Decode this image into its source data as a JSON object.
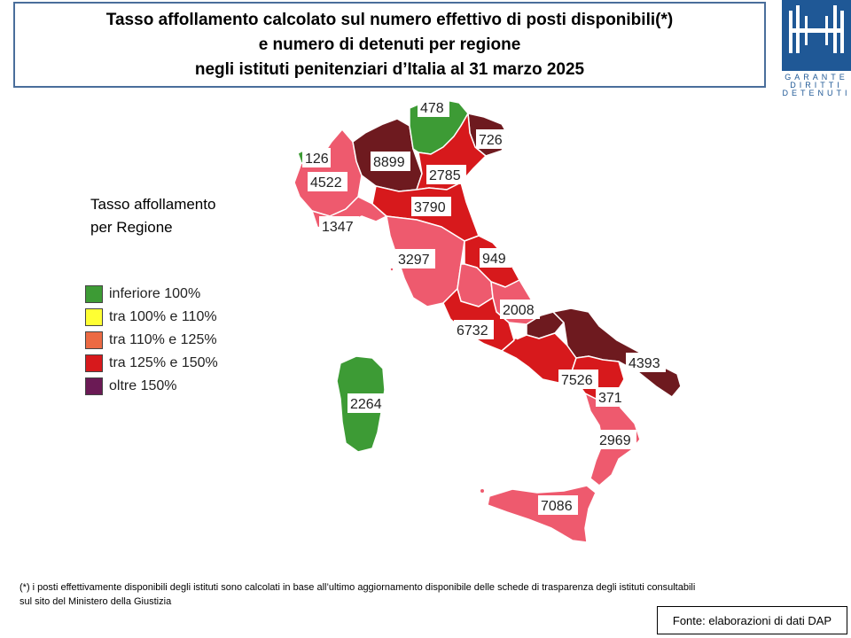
{
  "title": {
    "line1": "Tasso affollamento calcolato sul numero effettivo di posti disponibili(*)",
    "line2": "e numero di detenuti per regione",
    "line3": "negli istituti penitenziari d’Italia al 31 marzo 2025"
  },
  "logo": {
    "line1": "GARANTE",
    "line2": "DIRITTI",
    "line3": "DETENUTI",
    "color": "#1f5896"
  },
  "legend": {
    "title": "Tasso affollamento per Regione",
    "items": [
      {
        "label": "inferiore 100%",
        "color": "#3d9b35"
      },
      {
        "label": "tra 100% e 110%",
        "color": "#ffff33"
      },
      {
        "label": "tra 110% e 125%",
        "color": "#ec6a43"
      },
      {
        "label": "tra 125% e 150%",
        "color": "#d7191c"
      },
      {
        "label": "oltre 150%",
        "color": "#6b1a55"
      }
    ]
  },
  "regions": [
    {
      "name": "Valle d'Aosta",
      "value": "126",
      "class": "inferiore 100%"
    },
    {
      "name": "Piemonte",
      "value": "4522",
      "class": "tra 110% e 125%"
    },
    {
      "name": "Liguria",
      "value": "1347",
      "class": "tra 110% e 125%"
    },
    {
      "name": "Lombardia",
      "value": "8899",
      "class": "oltre 150%"
    },
    {
      "name": "Trentino-Alto Adige",
      "value": "478",
      "class": "inferiore 100%"
    },
    {
      "name": "Veneto",
      "value": "2785",
      "class": "oltre 150%"
    },
    {
      "name": "Friuli-Venezia Giulia",
      "value": "726",
      "class": "tra 125% e 150%"
    },
    {
      "name": "Emilia-Romagna",
      "value": "3790",
      "class": "tra 125% e 150%"
    },
    {
      "name": "Toscana",
      "value": "3297",
      "class": "tra 110% e 125%"
    },
    {
      "name": "Marche",
      "value": "949",
      "class": "tra 125% e 150%"
    },
    {
      "name": "Umbria",
      "value": "",
      "class": "tra 110% e 125%"
    },
    {
      "name": "Abruzzo",
      "value": "2008",
      "class": "tra 110% e 125%"
    },
    {
      "name": "Lazio",
      "value": "6732",
      "class": "tra 125% e 150%"
    },
    {
      "name": "Molise",
      "value": "",
      "class": "oltre 150%"
    },
    {
      "name": "Campania",
      "value": "7526",
      "class": "tra 125% e 150%"
    },
    {
      "name": "Puglia",
      "value": "4393",
      "class": "oltre 150%"
    },
    {
      "name": "Basilicata",
      "value": "371",
      "class": "tra 125% e 150%"
    },
    {
      "name": "Calabria",
      "value": "2969",
      "class": "tra 110% e 125%"
    },
    {
      "name": "Sicilia",
      "value": "7086",
      "class": "tra 110% e 125%"
    },
    {
      "name": "Sardegna",
      "value": "2264",
      "class": "inferiore 100%"
    }
  ],
  "colors": {
    "green": "#3d9b35",
    "pink": "#ee5a6e",
    "red": "#d7191c",
    "darkred": "#6e1a1f",
    "outline": "#ffffff"
  },
  "footnote": {
    "line1": "(*) i posti effettivamente disponibili  degli istituti sono calcolati in base all’ultimo aggiornamento disponibile  delle schede di trasparenza degli istituti consultabili",
    "line2": "sul sito del Ministero della Giustizia"
  },
  "source": "Fonte: elaborazioni di dati DAP"
}
